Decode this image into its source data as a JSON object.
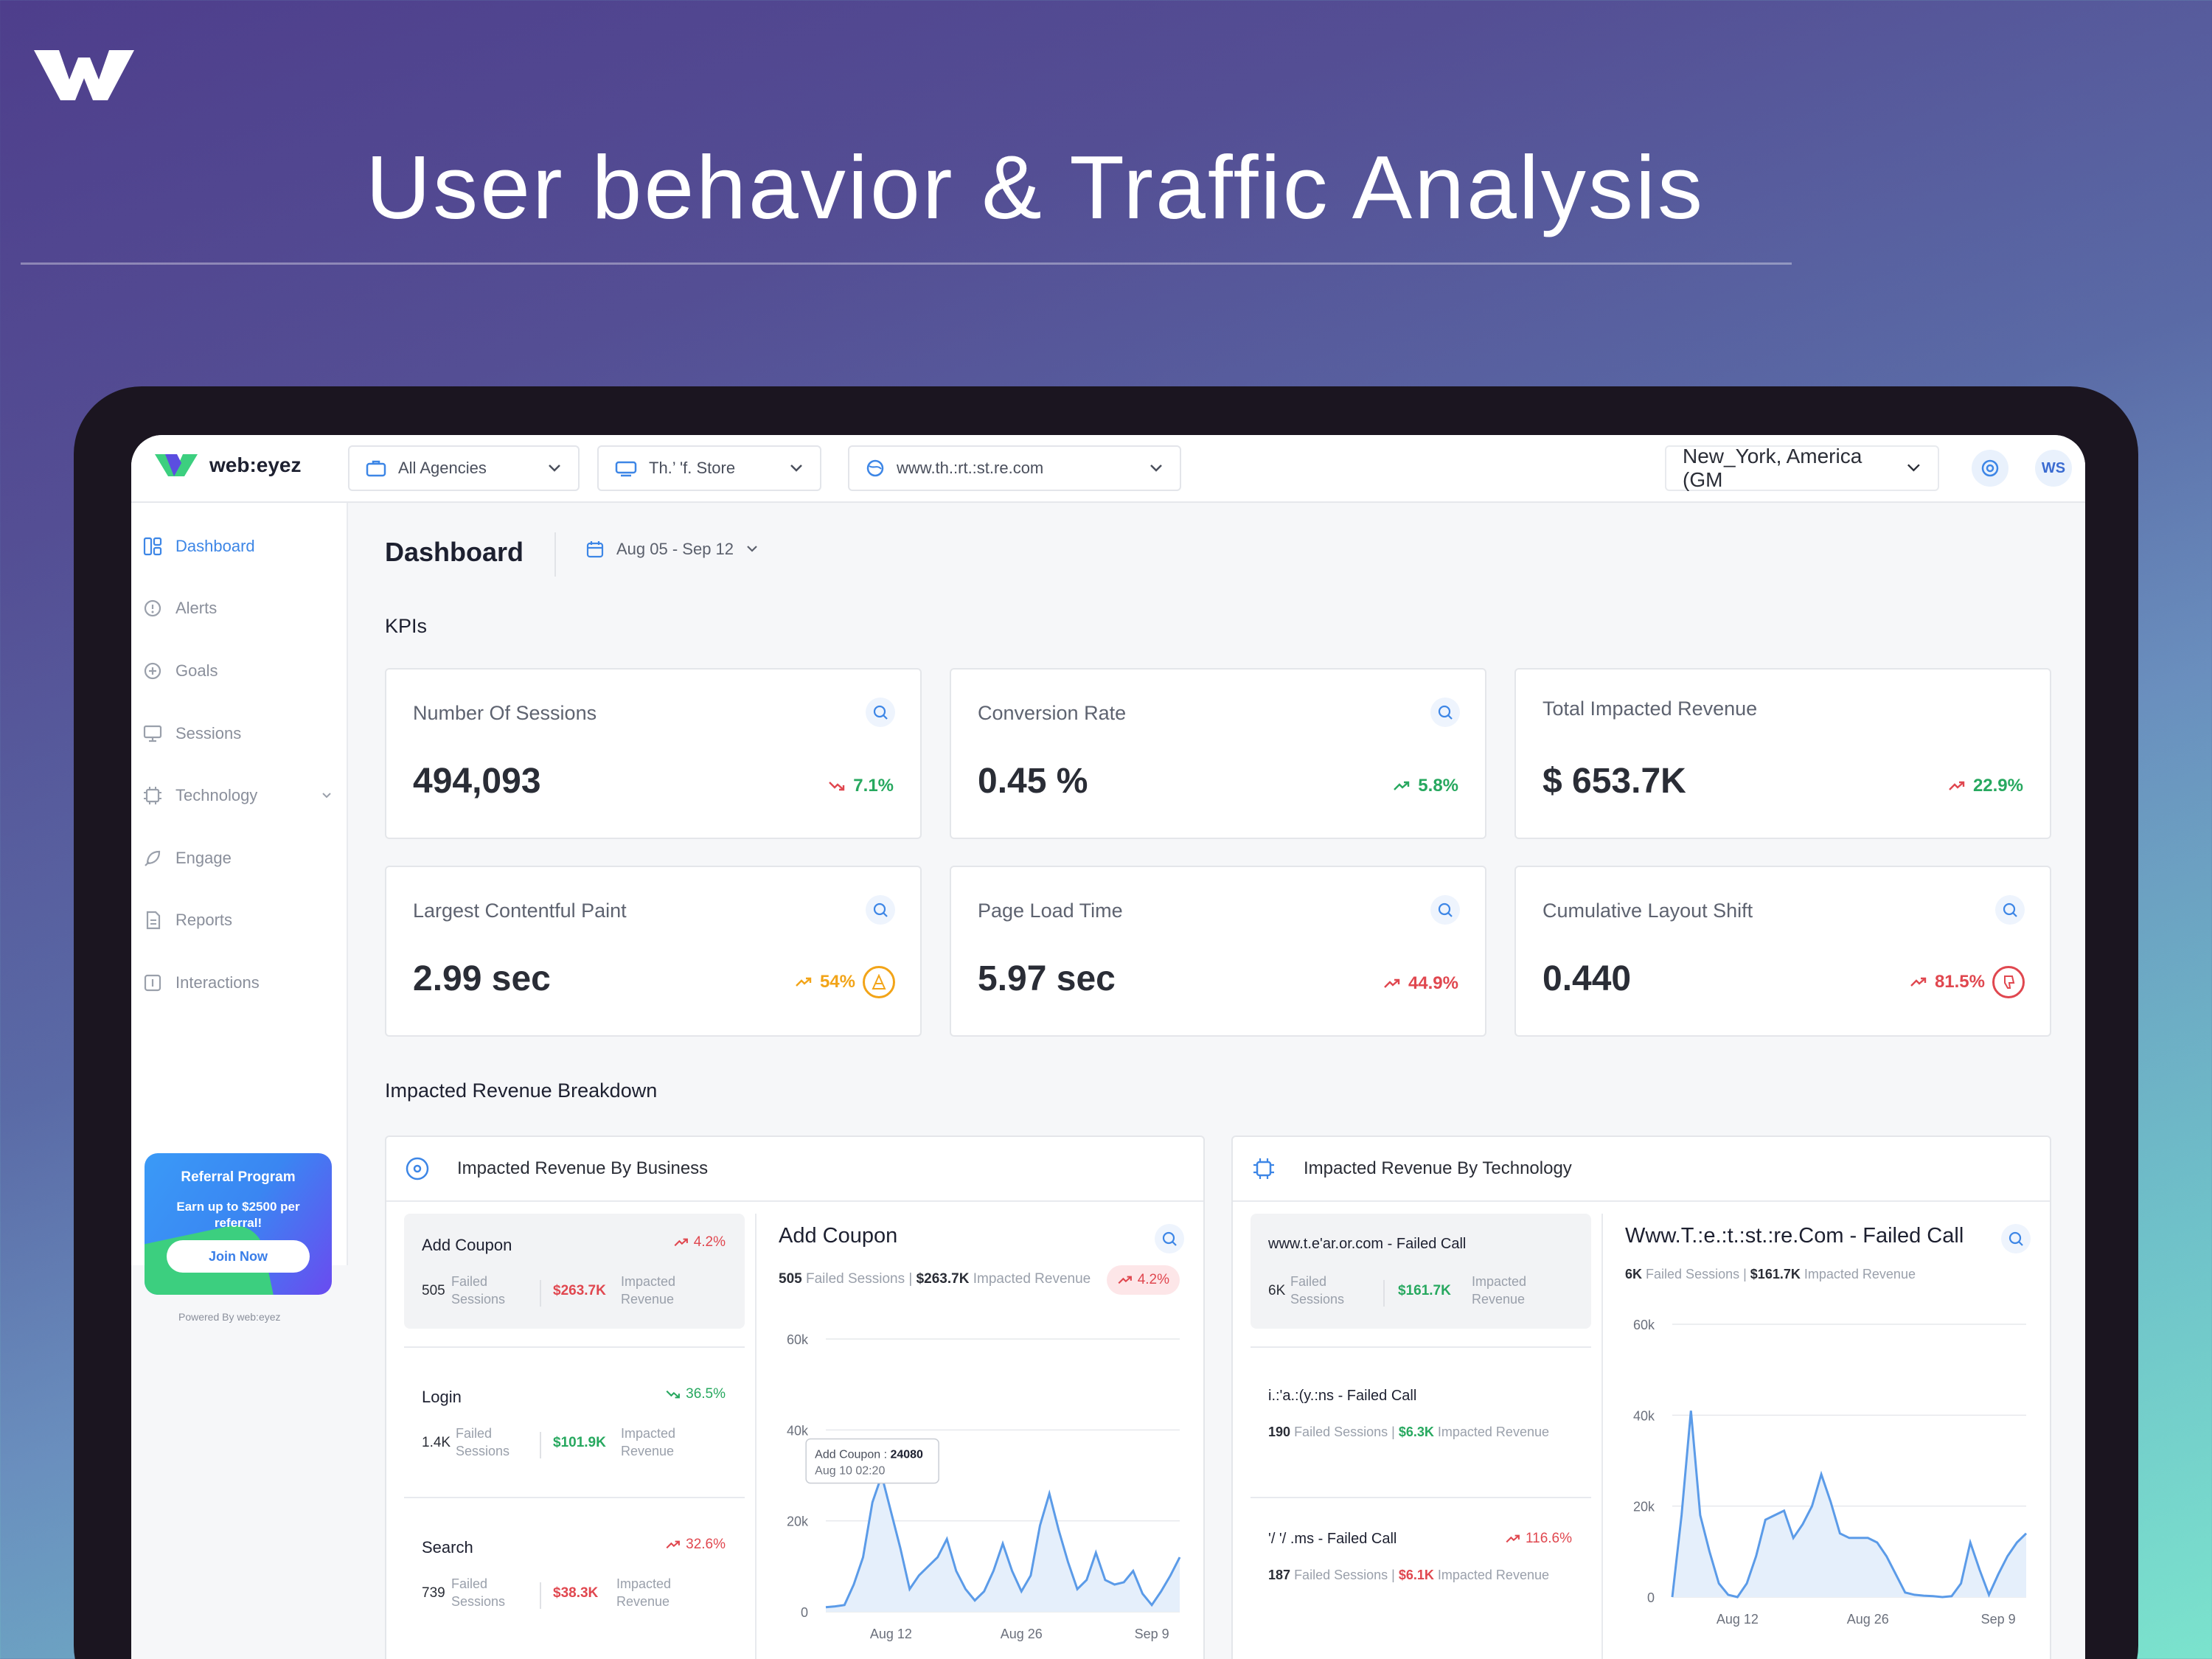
{
  "hero": {
    "title": "User behavior & Traffic Analysis"
  },
  "topbar": {
    "brand": "web:eyez",
    "agency_select": "All Agencies",
    "store_select": "Th.’ 'f. Store",
    "domain_select": "www.th.:rt.:st.re.com",
    "timezone": "New_York, America (GM",
    "avatar": "WS"
  },
  "sidebar": {
    "items": [
      {
        "label": "Dashboard",
        "icon": "dashboard-icon"
      },
      {
        "label": "Alerts",
        "icon": "alert-icon"
      },
      {
        "label": "Goals",
        "icon": "goal-icon"
      },
      {
        "label": "Sessions",
        "icon": "monitor-icon"
      },
      {
        "label": "Technology",
        "icon": "chip-icon"
      },
      {
        "label": "Engage",
        "icon": "rocket-icon"
      },
      {
        "label": "Reports",
        "icon": "report-icon"
      },
      {
        "label": "Interactions",
        "icon": "interaction-icon"
      }
    ],
    "referral": {
      "title": "Referral Program",
      "subtitle": "Earn up to $2500 per referral!",
      "button": "Join Now"
    },
    "powered": "Powered By web:eyez"
  },
  "header": {
    "title": "Dashboard",
    "date_range": "Aug 05 - Sep 12"
  },
  "kpis_title": "KPIs",
  "kpis": [
    {
      "label": "Number Of Sessions",
      "value": "494,093",
      "delta": "7.1%"
    },
    {
      "label": "Conversion Rate",
      "value": "0.45 %",
      "delta": "5.8%"
    },
    {
      "label": "Total Impacted Revenue",
      "value": "$ 653.7K",
      "delta": "22.9%"
    },
    {
      "label": "Largest Contentful Paint",
      "value": "2.99 sec",
      "delta": "54%"
    },
    {
      "label": "Page Load Time",
      "value": "5.97 sec",
      "delta": "44.9%"
    },
    {
      "label": "Cumulative Layout Shift",
      "value": "0.440",
      "delta": "81.5%"
    }
  ],
  "breakdown_title": "Impacted Revenue Breakdown",
  "business": {
    "title": "Impacted Revenue By Business",
    "items": [
      {
        "name": "Add Coupon",
        "delta": "4.2%",
        "sessions": "505",
        "sessions_label": "Failed Sessions",
        "revenue": "$263.7K",
        "revenue_label": "Impacted Revenue"
      },
      {
        "name": "Login",
        "delta": "36.5%",
        "sessions": "1.4K",
        "sessions_label": "Failed Sessions",
        "revenue": "$101.9K",
        "revenue_label": "Impacted Revenue"
      },
      {
        "name": "Search",
        "delta": "32.6%",
        "sessions": "739",
        "sessions_label": "Failed Sessions",
        "revenue": "$38.3K",
        "revenue_label": "Impacted Revenue"
      }
    ],
    "detail": {
      "title": "Add Coupon",
      "sessions": "505",
      "sessions_label": "Failed Sessions",
      "revenue": "$263.7K",
      "revenue_label": "Impacted Revenue",
      "delta": "4.2%",
      "tooltip_title": "Add Coupon :",
      "tooltip_value": "24080",
      "tooltip_time": "Aug 10 02:20"
    }
  },
  "technology": {
    "title": "Impacted Revenue By Technology",
    "items": [
      {
        "name": "www.t.e'ar.or.com - Failed Call",
        "sessions": "6K",
        "sessions_label": "Failed Sessions",
        "revenue": "$161.7K",
        "revenue_label": "Impacted Revenue"
      },
      {
        "name": "i.:'a.:(y.:ns - Failed Call",
        "sessions": "190",
        "sessions_label": "Failed Sessions",
        "revenue": "$6.3K",
        "revenue_label": "Impacted Revenue"
      },
      {
        "name": "'/ '/ .ms - Failed Call",
        "delta": "116.6%",
        "sessions": "187",
        "sessions_label": "Failed Sessions",
        "revenue": "$6.1K",
        "revenue_label": "Impacted Revenue"
      }
    ],
    "detail": {
      "title": "Www.T.:e.:t.:st.:re.Com - Failed Call",
      "sessions": "6K",
      "sessions_label": "Failed Sessions",
      "revenue": "$161.7K",
      "revenue_label": "Impacted Revenue"
    }
  },
  "colors": {
    "accent": "#3d86e6",
    "up_red": "#e0474f",
    "green": "#27a85f",
    "orange": "#f2a418",
    "line": "#5b9be8"
  },
  "chart_data": [
    {
      "type": "area",
      "title": "Add Coupon",
      "x": [
        "Aug 05",
        "Aug 06",
        "Aug 07",
        "Aug 08",
        "Aug 09",
        "Aug 10",
        "Aug 11",
        "Aug 12",
        "Aug 13",
        "Aug 14",
        "Aug 15",
        "Aug 16",
        "Aug 17",
        "Aug 18",
        "Aug 19",
        "Aug 20",
        "Aug 21",
        "Aug 22",
        "Aug 23",
        "Aug 24",
        "Aug 25",
        "Aug 26",
        "Aug 27",
        "Aug 28",
        "Aug 29",
        "Aug 30",
        "Aug 31",
        "Sep 01",
        "Sep 02",
        "Sep 03",
        "Sep 04",
        "Sep 05",
        "Sep 06",
        "Sep 07",
        "Sep 08",
        "Sep 09",
        "Sep 10",
        "Sep 11",
        "Sep 12"
      ],
      "series": [
        {
          "values": [
            1000,
            1200,
            1500,
            6000,
            12000,
            24080,
            30000,
            22000,
            14000,
            5000,
            8000,
            10000,
            12000,
            16000,
            9000,
            5000,
            2500,
            4500,
            9000,
            15000,
            9000,
            4500,
            8000,
            19000,
            26000,
            18000,
            11000,
            5000,
            7000,
            13000,
            7000,
            6000,
            6500,
            9000,
            4000,
            1500,
            4500,
            8000,
            12000
          ]
        }
      ],
      "x_ticks": [
        "Aug 12",
        "Aug 26",
        "Sep 9"
      ],
      "y_ticks": [
        "0",
        "20k",
        "40k",
        "60k"
      ],
      "ylim": [
        0,
        60000
      ]
    },
    {
      "type": "area",
      "title": "Www.T.:e.:t.:st.:re.Com - Failed Call",
      "x": [
        "Aug 05",
        "Aug 06",
        "Aug 07",
        "Aug 08",
        "Aug 09",
        "Aug 10",
        "Aug 11",
        "Aug 12",
        "Aug 13",
        "Aug 14",
        "Aug 15",
        "Aug 16",
        "Aug 17",
        "Aug 18",
        "Aug 19",
        "Aug 20",
        "Aug 21",
        "Aug 22",
        "Aug 23",
        "Aug 24",
        "Aug 25",
        "Aug 26",
        "Aug 27",
        "Aug 28",
        "Aug 29",
        "Aug 30",
        "Aug 31",
        "Sep 01",
        "Sep 02",
        "Sep 03",
        "Sep 04",
        "Sep 05",
        "Sep 06",
        "Sep 07",
        "Sep 08",
        "Sep 09",
        "Sep 10",
        "Sep 11",
        "Sep 12"
      ],
      "series": [
        {
          "values": [
            0,
            18000,
            41000,
            18000,
            10000,
            3000,
            500,
            0,
            3000,
            9000,
            17000,
            18000,
            19000,
            13000,
            16000,
            20000,
            27000,
            21000,
            14000,
            13000,
            13000,
            13000,
            12000,
            9000,
            5000,
            1000,
            500,
            300,
            200,
            0,
            200,
            3000,
            12000,
            6000,
            500,
            5000,
            9000,
            12000,
            14000
          ]
        }
      ],
      "x_ticks": [
        "Aug 12",
        "Aug 26",
        "Sep 9"
      ],
      "y_ticks": [
        "0",
        "20k",
        "40k",
        "60k"
      ],
      "ylim": [
        0,
        60000
      ]
    }
  ]
}
